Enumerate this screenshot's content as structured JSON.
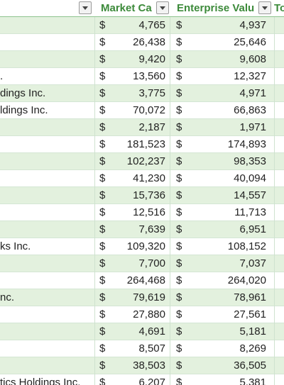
{
  "headers": {
    "market_cap": "Market Ca",
    "enterprise_value": "Enterprise Valu",
    "total": "To"
  },
  "currency_symbol": "$",
  "rows": [
    {
      "name": "",
      "market_cap": "4,765",
      "enterprise_value": "4,937"
    },
    {
      "name": "",
      "market_cap": "26,438",
      "enterprise_value": "25,646"
    },
    {
      "name": "",
      "market_cap": "9,420",
      "enterprise_value": "9,608"
    },
    {
      "name": ".",
      "market_cap": "13,560",
      "enterprise_value": "12,327"
    },
    {
      "name": "dings Inc.",
      "market_cap": "3,775",
      "enterprise_value": "4,971"
    },
    {
      "name": "ldings Inc.",
      "market_cap": "70,072",
      "enterprise_value": "66,863"
    },
    {
      "name": "",
      "market_cap": "2,187",
      "enterprise_value": "1,971"
    },
    {
      "name": "",
      "market_cap": "181,523",
      "enterprise_value": "174,893"
    },
    {
      "name": "",
      "market_cap": "102,237",
      "enterprise_value": "98,353"
    },
    {
      "name": "",
      "market_cap": "41,230",
      "enterprise_value": "40,094"
    },
    {
      "name": "",
      "market_cap": "15,736",
      "enterprise_value": "14,557"
    },
    {
      "name": "",
      "market_cap": "12,516",
      "enterprise_value": "11,713"
    },
    {
      "name": "",
      "market_cap": "7,639",
      "enterprise_value": "6,951"
    },
    {
      "name": "ks Inc.",
      "market_cap": "109,320",
      "enterprise_value": "108,152"
    },
    {
      "name": "",
      "market_cap": "7,700",
      "enterprise_value": "7,037"
    },
    {
      "name": "",
      "market_cap": "264,468",
      "enterprise_value": "264,020"
    },
    {
      "name": "nc.",
      "market_cap": "79,619",
      "enterprise_value": "78,961"
    },
    {
      "name": "",
      "market_cap": "27,880",
      "enterprise_value": "27,561"
    },
    {
      "name": "",
      "market_cap": "4,691",
      "enterprise_value": "5,181"
    },
    {
      "name": "",
      "market_cap": "8,507",
      "enterprise_value": "8,269"
    },
    {
      "name": "",
      "market_cap": "38,503",
      "enterprise_value": "36,505"
    },
    {
      "name": "tics Holdings Inc.",
      "market_cap": "6,207",
      "enterprise_value": "5,381"
    }
  ],
  "colors": {
    "band": "#e3f1de",
    "header_text": "#3c8a3a",
    "grid": "#d4e6d4"
  }
}
